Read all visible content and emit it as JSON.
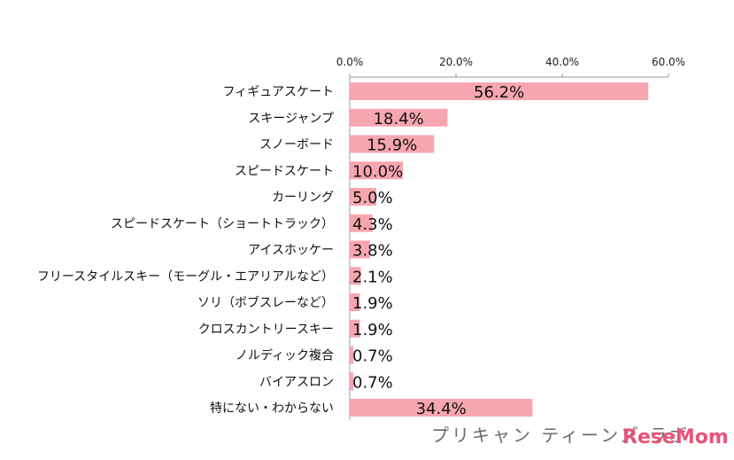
{
  "chart_data": {
    "type": "bar",
    "orientation": "horizontal",
    "categories": [
      "フィギュアスケート",
      "スキージャンプ",
      "スノーボード",
      "スピードスケート",
      "カーリング",
      "スピードスケート（ショートトラック）",
      "アイスホッケー",
      "フリースタイルスキー（モーグル・エアリアルなど）",
      "ソリ（ボブスレーなど）",
      "クロスカントリースキー",
      "ノルディック複合",
      "バイアスロン",
      "特にない・わからない"
    ],
    "values": [
      56.2,
      18.4,
      15.9,
      10.0,
      5.0,
      4.3,
      3.8,
      2.1,
      1.9,
      1.9,
      0.7,
      0.7,
      34.4
    ],
    "value_labels": [
      "56.2%",
      "18.4%",
      "15.9%",
      "10.0%",
      "5.0%",
      "4.3%",
      "3.8%",
      "2.1%",
      "1.9%",
      "1.9%",
      "0.7%",
      "0.7%",
      "34.4%"
    ],
    "xlim": [
      0,
      60
    ],
    "x_ticks": [
      0,
      20,
      40,
      60
    ],
    "x_tick_labels": [
      "0.0%",
      "20.0%",
      "40.0%",
      "60.0%"
    ],
    "x_axis_position": "top",
    "grid": false,
    "bar_color": "#f7a6b0",
    "title": "",
    "xlabel": "",
    "ylabel": ""
  },
  "watermark": {
    "text_jp": "プリキャン ティーンズ ラボ",
    "brand": "ReseMom"
  }
}
